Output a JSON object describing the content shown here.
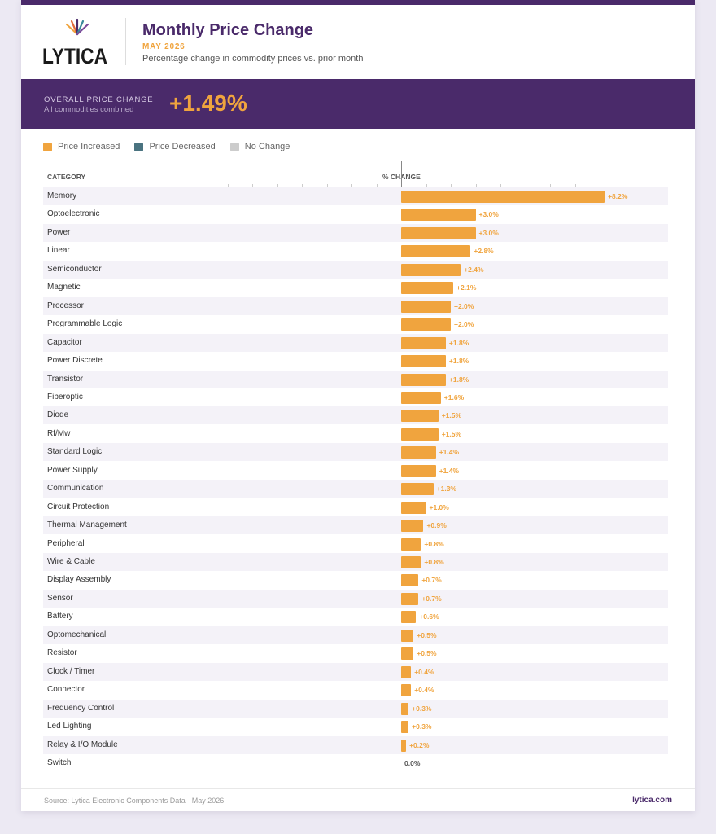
{
  "header": {
    "logo_text": "LYTICA",
    "title": "Monthly Price Change",
    "date": "MAY 2026",
    "subtitle": "Percentage change in commodity prices vs. prior month"
  },
  "summary": {
    "label": "OVERALL PRICE CHANGE",
    "sublabel": "All commodities combined",
    "value": "+1.49%"
  },
  "legend": [
    {
      "label": "Price Increased",
      "color": "#f0a43e"
    },
    {
      "label": "Price Decreased",
      "color": "#4a7380"
    },
    {
      "label": "No Change",
      "color": "#cccccc"
    }
  ],
  "table_headers": {
    "category": "CATEGORY",
    "change": "% CHANGE"
  },
  "chart_data": {
    "type": "bar",
    "orientation": "horizontal",
    "title": "Monthly Price Change",
    "xlabel": "% CHANGE",
    "ylabel": "CATEGORY",
    "colors": {
      "increase": "#f0a43e",
      "decrease": "#4a7380",
      "no_change": "#cccccc"
    },
    "categories": [
      "Memory",
      "Optoelectronic",
      "Power",
      "Linear",
      "Semiconductor",
      "Magnetic",
      "Processor",
      "Programmable Logic",
      "Capacitor",
      "Power Discrete",
      "Transistor",
      "Fiberoptic",
      "Diode",
      "Rf/Mw",
      "Standard Logic",
      "Power Supply",
      "Communication",
      "Circuit Protection",
      "Thermal Management",
      "Peripheral",
      "Wire & Cable",
      "Display Assembly",
      "Sensor",
      "Battery",
      "Optomechanical",
      "Resistor",
      "Clock / Timer",
      "Connector",
      "Frequency Control",
      "Led Lighting",
      "Relay & I/O Module",
      "Switch"
    ],
    "values": [
      8.2,
      3.0,
      3.0,
      2.8,
      2.4,
      2.1,
      2.0,
      2.0,
      1.8,
      1.8,
      1.8,
      1.6,
      1.5,
      1.5,
      1.4,
      1.4,
      1.3,
      1.0,
      0.9,
      0.8,
      0.8,
      0.7,
      0.7,
      0.6,
      0.5,
      0.5,
      0.4,
      0.4,
      0.3,
      0.3,
      0.2,
      0.0
    ],
    "labels": [
      "+8.2%",
      "+3.0%",
      "+3.0%",
      "+2.8%",
      "+2.4%",
      "+2.1%",
      "+2.0%",
      "+2.0%",
      "+1.8%",
      "+1.8%",
      "+1.8%",
      "+1.6%",
      "+1.5%",
      "+1.5%",
      "+1.4%",
      "+1.4%",
      "+1.3%",
      "+1.0%",
      "+0.9%",
      "+0.8%",
      "+0.8%",
      "+0.7%",
      "+0.7%",
      "+0.6%",
      "+0.5%",
      "+0.5%",
      "+0.4%",
      "+0.4%",
      "+0.3%",
      "+0.3%",
      "+0.2%",
      "0.0%"
    ]
  },
  "footer": {
    "source": "Source: Lytica Electronic Components Data  ·  May 2026",
    "url": "lytica.com"
  }
}
